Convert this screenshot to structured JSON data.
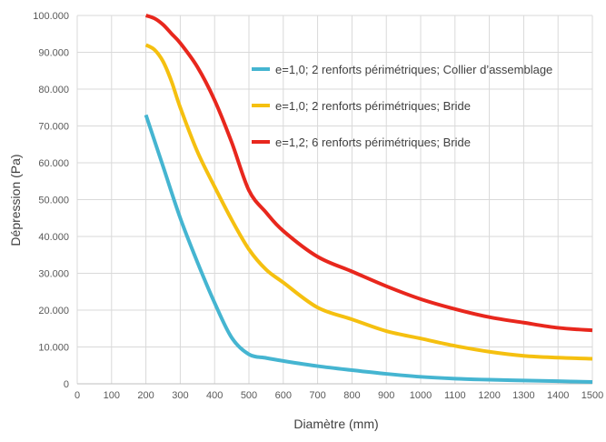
{
  "chart_data": {
    "type": "line",
    "xlabel": "Diamètre (mm)",
    "ylabel": "Dépression (Pa)",
    "xlim": [
      0,
      1500
    ],
    "ylim": [
      0,
      100000
    ],
    "x_ticks": [
      "0",
      "100",
      "200",
      "300",
      "400",
      "500",
      "600",
      "700",
      "800",
      "900",
      "1000",
      "1100",
      "1200",
      "1300",
      "1400",
      "1500"
    ],
    "y_ticks": [
      "0",
      "10.000",
      "20.000",
      "30.000",
      "40.000",
      "50.000",
      "60.000",
      "70.000",
      "80.000",
      "90.000",
      "100.000"
    ],
    "grid": true,
    "legend_position": "top-right",
    "series": [
      {
        "name": "e=1,0; 2 renforts périmétriques; Collier d’assemblage",
        "color": "#45B5D1",
        "x": [
          200,
          250,
          300,
          350,
          400,
          450,
          500,
          550,
          600,
          700,
          800,
          900,
          1000,
          1100,
          1200,
          1300,
          1400,
          1500
        ],
        "y": [
          73000,
          59000,
          45000,
          33000,
          22000,
          12500,
          8000,
          7000,
          6200,
          4800,
          3700,
          2700,
          1900,
          1400,
          1100,
          900,
          700,
          500
        ]
      },
      {
        "name": "e=1,0; 2 renforts périmétriques; Bride",
        "color": "#F5C010",
        "x": [
          200,
          225,
          250,
          275,
          300,
          350,
          400,
          450,
          500,
          550,
          600,
          700,
          800,
          900,
          1000,
          1100,
          1200,
          1300,
          1400,
          1500
        ],
        "y": [
          92000,
          90700,
          87500,
          82000,
          75000,
          63000,
          53500,
          44500,
          36500,
          31000,
          27500,
          20700,
          17500,
          14300,
          12300,
          10300,
          8700,
          7600,
          7100,
          6800
        ]
      },
      {
        "name": "e=1,2; 6 renforts périmétriques; Bride",
        "color": "#E8271D",
        "x": [
          200,
          225,
          250,
          275,
          300,
          350,
          400,
          450,
          500,
          550,
          600,
          700,
          800,
          900,
          1000,
          1100,
          1200,
          1300,
          1400,
          1500
        ],
        "y": [
          100000,
          99200,
          97500,
          95000,
          92500,
          86000,
          77000,
          65500,
          52500,
          46500,
          41500,
          34500,
          30500,
          26500,
          23000,
          20300,
          18100,
          16600,
          15200,
          14500
        ]
      }
    ]
  }
}
